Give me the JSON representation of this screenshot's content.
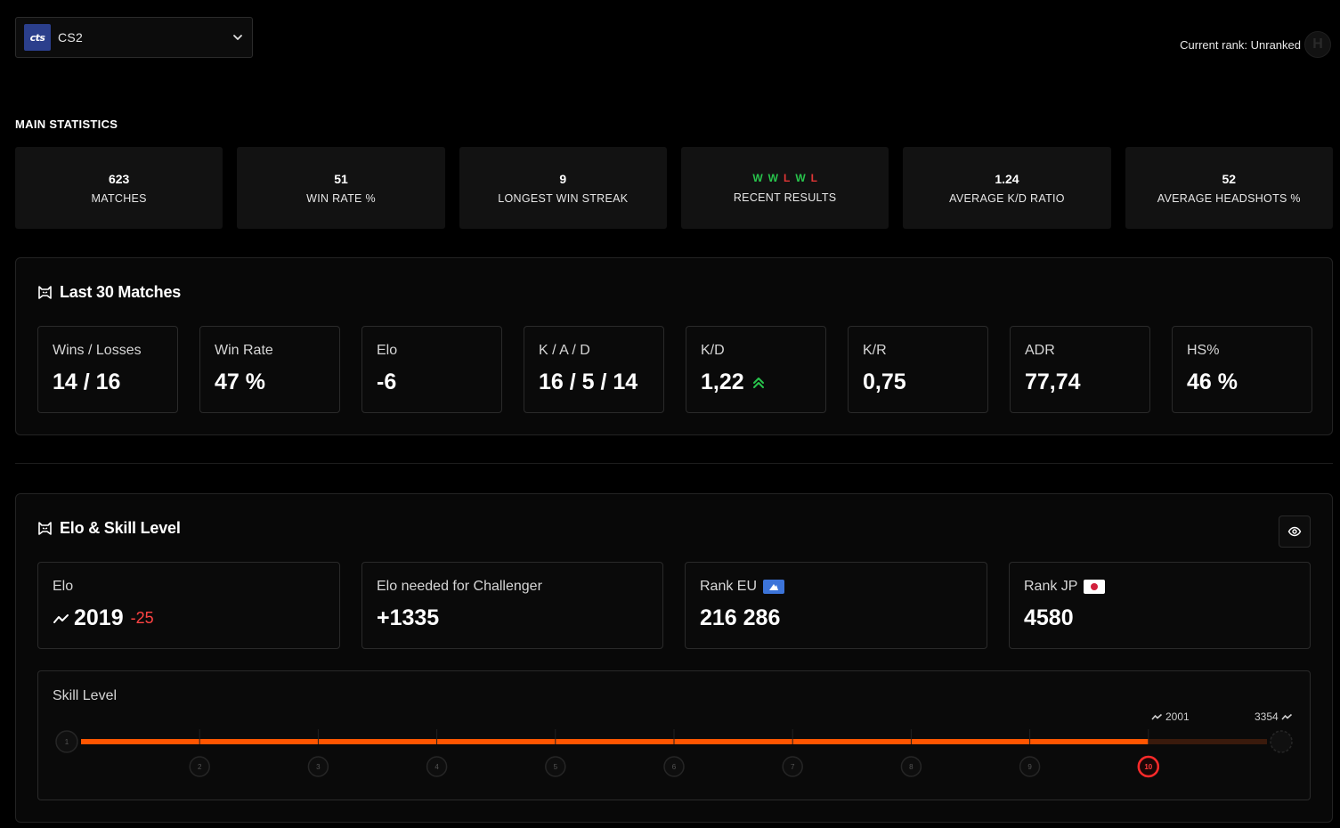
{
  "game": {
    "logo_text": "cts",
    "name": "CS2"
  },
  "rank": {
    "current": "Current rank: Unranked",
    "badge_letter": "H"
  },
  "main_stats": {
    "title": "MAIN STATISTICS",
    "cards": [
      {
        "value": "623",
        "label": "MATCHES"
      },
      {
        "value": "51",
        "label": "WIN RATE %"
      },
      {
        "value": "9",
        "label": "LONGEST WIN STREAK"
      },
      {
        "value": "",
        "label": "RECENT RESULTS"
      },
      {
        "value": "1.24",
        "label": "AVERAGE K/D RATIO"
      },
      {
        "value": "52",
        "label": "AVERAGE HEADSHOTS %"
      }
    ],
    "recent_results": [
      "W",
      "W",
      "L",
      "W",
      "L"
    ]
  },
  "last30": {
    "title": "Last 30 Matches",
    "metrics": [
      {
        "label": "Wins / Losses",
        "value": "14 / 16"
      },
      {
        "label": "Win Rate",
        "value": "47 %"
      },
      {
        "label": "Elo",
        "value": "-6"
      },
      {
        "label": "K / A / D",
        "value": "16 / 5 / 14"
      },
      {
        "label": "K/D",
        "value": "1,22"
      },
      {
        "label": "K/R",
        "value": "0,75"
      },
      {
        "label": "ADR",
        "value": "77,74"
      },
      {
        "label": "HS%",
        "value": "46 %"
      }
    ]
  },
  "elo_skill": {
    "title": "Elo & Skill Level",
    "cards": [
      {
        "label": "Elo",
        "value": "2019",
        "delta": "-25"
      },
      {
        "label": "Elo needed for Challenger",
        "value": "+1335"
      },
      {
        "label": "Rank EU",
        "value": "216 286"
      },
      {
        "label": "Rank JP",
        "value": "4580"
      }
    ],
    "skill": {
      "title": "Skill Level",
      "current_elo": "2001",
      "max_elo": "3354",
      "current_level": "10",
      "levels": [
        "1",
        "2",
        "3",
        "4",
        "5",
        "6",
        "7",
        "8",
        "9",
        "10"
      ],
      "progress_fraction": 0.9,
      "accent": "#ff5500"
    }
  }
}
